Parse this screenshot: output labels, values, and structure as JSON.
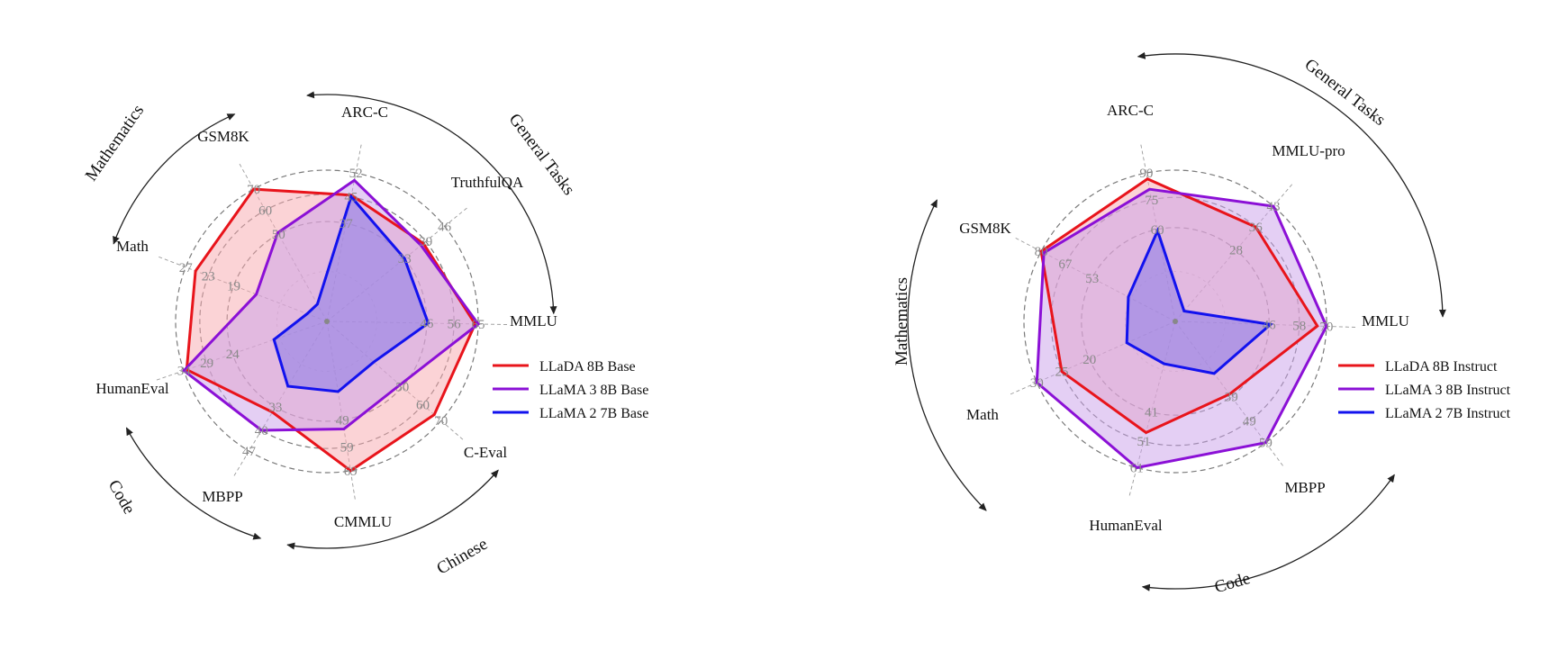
{
  "colors": {
    "llada": "#e8141b",
    "llama3": "#8b10d6",
    "llama2": "#1212ee",
    "llada_fill": "#f7a8ae",
    "llama3_fill": "#caa0ea",
    "llama2_fill": "#8a7ce8",
    "grid": "#7a7a7a",
    "tick": "#8a8a8a",
    "arrow": "#222222"
  },
  "chart_data": [
    {
      "type": "radar",
      "axes": [
        "ARC-C",
        "TruthfulQA",
        "MMLU",
        "C-Eval",
        "CMMLU",
        "MBPP",
        "HumanEval",
        "Math",
        "GSM8K"
      ],
      "tick_labels": [
        [
          "37",
          "45",
          "52"
        ],
        [
          "33",
          "39",
          "46"
        ],
        [
          "46",
          "56",
          "65"
        ],
        [
          "50",
          "60",
          "70"
        ],
        [
          "49",
          "59",
          "69"
        ],
        [
          "33",
          "40",
          "47"
        ],
        [
          "24",
          "29",
          "34"
        ],
        [
          "19",
          "23",
          "27"
        ],
        [
          "50",
          "60",
          "70"
        ]
      ],
      "series": [
        {
          "name": "LLaDA 8B Base",
          "values": [
            0.85,
            0.82,
            0.98,
            0.94,
            1.0,
            0.7,
            0.98,
            0.93,
            1.0
          ]
        },
        {
          "name": "LLaMA 3 8B Base",
          "values": [
            0.95,
            0.8,
            1.0,
            0.64,
            0.72,
            0.84,
            1.0,
            0.5,
            0.67
          ]
        },
        {
          "name": "LLaMA 2 7B Base",
          "values": [
            0.84,
            0.66,
            0.67,
            0.41,
            0.47,
            0.5,
            0.37,
            0.14,
            0.13
          ]
        }
      ],
      "group_labels": [
        "General Tasks",
        "Chinese",
        "Code",
        "Mathematics"
      ]
    },
    {
      "type": "radar",
      "axes": [
        "ARC-C",
        "MMLU-pro",
        "MMLU",
        "MBPP",
        "HumanEval",
        "Math",
        "GSM8K"
      ],
      "tick_labels": [
        [
          "60",
          "75",
          "90"
        ],
        [
          "28",
          "36",
          "43"
        ],
        [
          "46",
          "58",
          "70"
        ],
        [
          "39",
          "49",
          "59"
        ],
        [
          "41",
          "51",
          "61"
        ],
        [
          "20",
          "25",
          "30"
        ],
        [
          "53",
          "67",
          "80"
        ]
      ],
      "series": [
        {
          "name": "LLaDA 8B Instruct",
          "values": [
            0.96,
            0.82,
            0.94,
            0.6,
            0.76,
            0.82,
            1.0
          ]
        },
        {
          "name": "LLaMA 3 8B Instruct",
          "values": [
            0.89,
            1.0,
            1.0,
            1.0,
            1.0,
            1.0,
            0.98
          ]
        },
        {
          "name": "LLaMA 2 7B Instruct",
          "values": [
            0.61,
            0.09,
            0.63,
            0.43,
            0.29,
            0.35,
            0.35
          ]
        }
      ],
      "group_labels": [
        "General Tasks",
        "Code",
        "Mathematics"
      ]
    }
  ]
}
